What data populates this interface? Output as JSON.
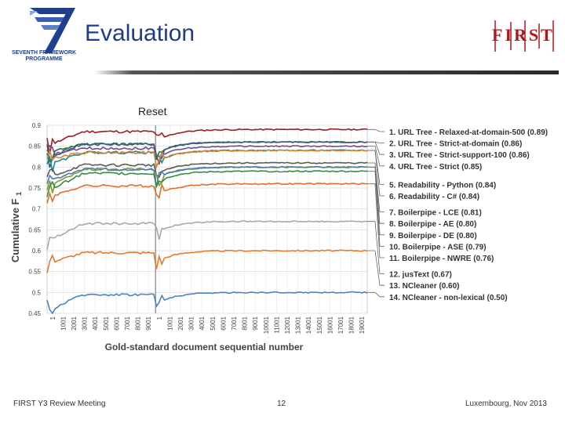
{
  "header": {
    "title": "Evaluation",
    "fp7_caption_line1": "SEVENTH FRAMEWORK",
    "fp7_caption_line2": "PROGRAMME",
    "first_logo_text": "FIRST"
  },
  "colors": {
    "title": "#1e3c8c",
    "first_red": "#b8121b",
    "fp7_blue": "#1f3e8c"
  },
  "chart_data": {
    "type": "line",
    "title": "",
    "annotation": "Reset",
    "xlabel": "Gold-standard document sequential number",
    "ylabel": "Cumulative F",
    "ylabel_subscript": "1",
    "ylim": [
      0.45,
      0.9
    ],
    "y_ticks": [
      "0.45",
      "0.5",
      "0.55",
      "0.6",
      "0.65",
      "0.7",
      "0.75",
      "0.8",
      "0.85",
      "0.9"
    ],
    "x_ticks": [
      "1",
      "1001",
      "2001",
      "3001",
      "4001",
      "5001",
      "6001",
      "7001",
      "8001",
      "9001",
      "1",
      "1001",
      "2001",
      "3001",
      "4001",
      "5001",
      "6001",
      "7001",
      "8001",
      "9001",
      "10001",
      "11001",
      "12001",
      "13001",
      "14001",
      "15001",
      "16001",
      "17001",
      "18001",
      "19001"
    ],
    "reset_at_x": 10000,
    "x_range": [
      1,
      29500
    ],
    "grid": true,
    "series": [
      {
        "name": "1. URL Tree - Relaxed-at-domain-500 (0.89)",
        "final": 0.89,
        "color": "#a01a26"
      },
      {
        "name": "2. URL Tree - Strict-at-domain (0.86)",
        "final": 0.86,
        "color": "#2e6b3a"
      },
      {
        "name": "3. URL Tree - Strict-support-100 (0.86)",
        "final": 0.86,
        "color": "#3b5d8c"
      },
      {
        "name": "4. URL Tree - Strict (0.85)",
        "final": 0.85,
        "color": "#6e4a8c"
      },
      {
        "name": "5. Readability - Python (0.84)",
        "final": 0.84,
        "color": "#1f8a8a"
      },
      {
        "name": "6. Readability - C# (0.84)",
        "final": 0.84,
        "color": "#d6852a"
      },
      {
        "name": "7. Boilerpipe - LCE (0.81)",
        "final": 0.81,
        "color": "#5a5a5a"
      },
      {
        "name": "8. Boilerpipe - AE (0.80)",
        "final": 0.8,
        "color": "#8a9a2a"
      },
      {
        "name": "9. Boilerpipe - DE (0.80)",
        "final": 0.8,
        "color": "#4a7fb5"
      },
      {
        "name": "10. Boilerpipe - ASE (0.79)",
        "final": 0.79,
        "color": "#3a8a4a"
      },
      {
        "name": "11. Boilerpipe - NWRE (0.76)",
        "final": 0.76,
        "color": "#e07030"
      },
      {
        "name": "12. jusText (0.67)",
        "final": 0.67,
        "color": "#a8a8a8"
      },
      {
        "name": "13. NCleaner (0.60)",
        "final": 0.6,
        "color": "#e8782a"
      },
      {
        "name": "14. NCleaner - non-lexical (0.50)",
        "final": 0.5,
        "color": "#4a84c4"
      }
    ]
  },
  "footer": {
    "left": "FIRST Y3 Review Meeting",
    "page": "12",
    "right": "Luxembourg, Nov 2013"
  }
}
